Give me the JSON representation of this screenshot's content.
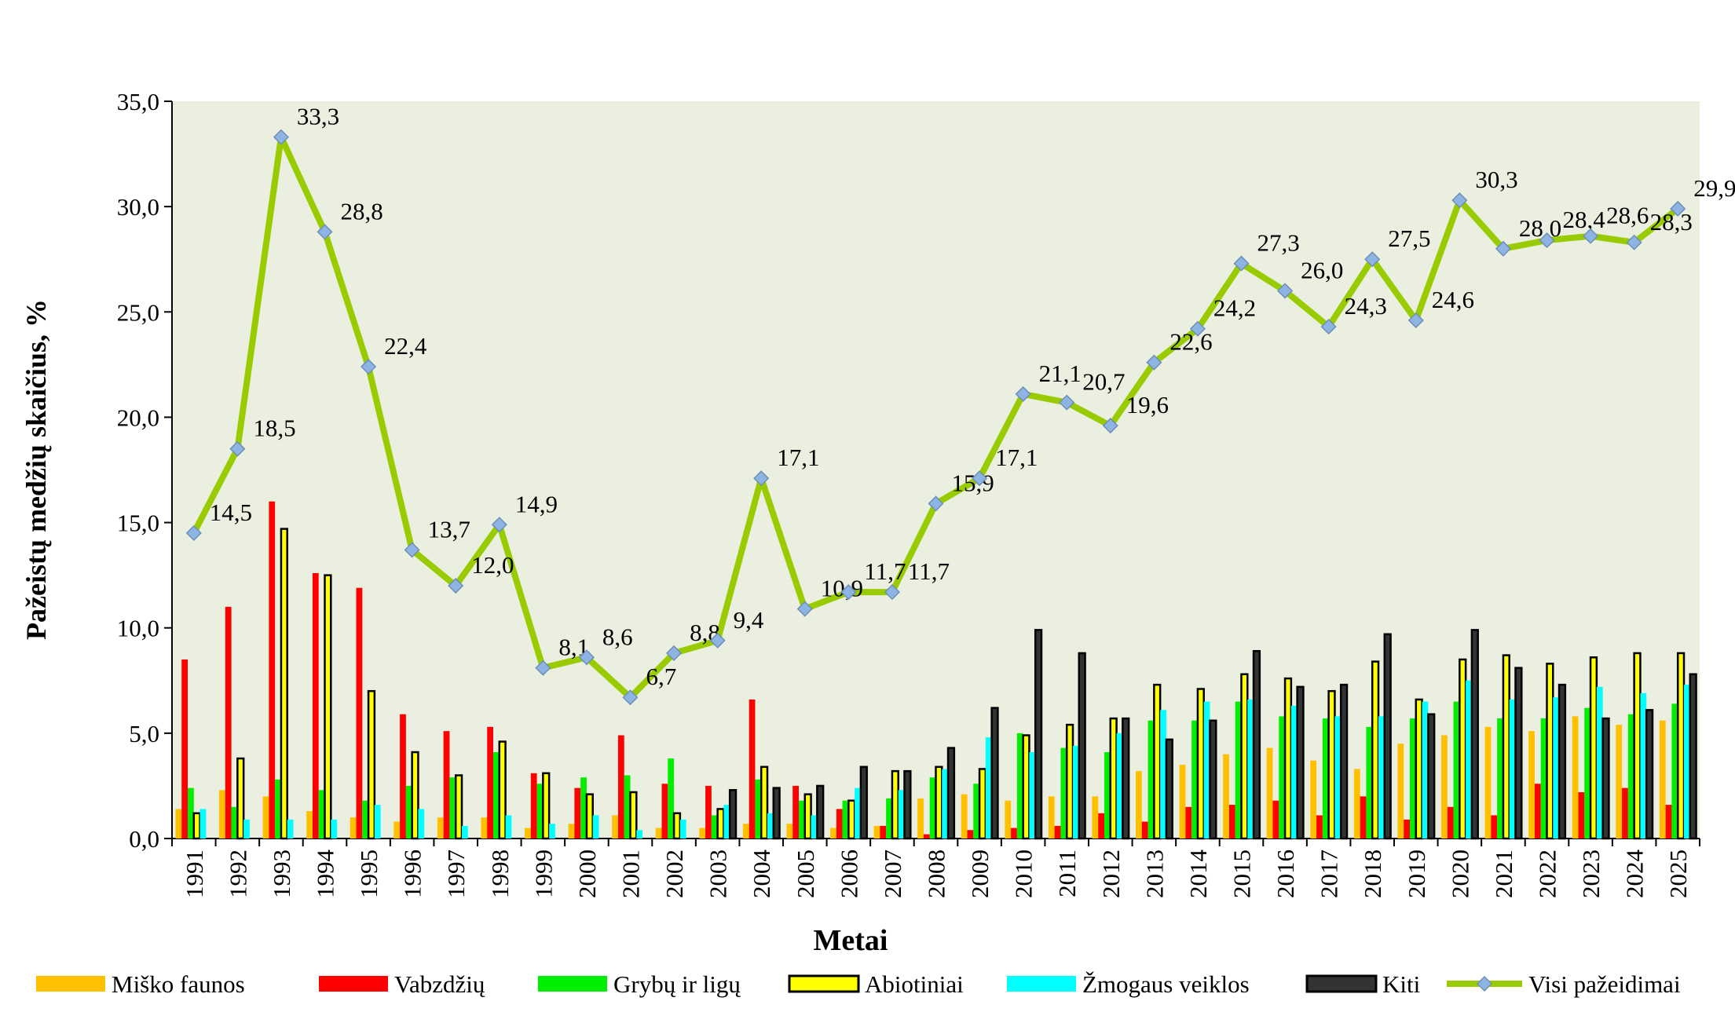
{
  "chart_data": {
    "type": "bar",
    "ylabel": "Pažeistų medžių skaičius, %",
    "xlabel": "Metai",
    "categories": [
      "1991",
      "1992",
      "1993",
      "1994",
      "1995",
      "1996",
      "1997",
      "1998",
      "1999",
      "2000",
      "2001",
      "2002",
      "2003",
      "2004",
      "2005",
      "2006",
      "2007",
      "2008",
      "2009",
      "2010",
      "2011",
      "2012",
      "2013",
      "2014",
      "2015",
      "2016",
      "2017",
      "2018",
      "2019",
      "2020",
      "2021",
      "2022",
      "2023",
      "2024",
      "2025"
    ],
    "ylim": [
      0,
      35
    ],
    "yticks": [
      {
        "value": 0,
        "label": "0,0"
      },
      {
        "value": 5,
        "label": "5,0"
      },
      {
        "value": 10,
        "label": "10,0"
      },
      {
        "value": 15,
        "label": "15,0"
      },
      {
        "value": 20,
        "label": "20,0"
      },
      {
        "value": 25,
        "label": "25,0"
      },
      {
        "value": 30,
        "label": "30,0"
      },
      {
        "value": 35,
        "label": "35,0"
      }
    ],
    "background": "#ebefdf",
    "series": [
      {
        "name": "Miško faunos",
        "color": "#ffc000",
        "values": [
          1.4,
          2.3,
          2.0,
          1.3,
          1.0,
          0.8,
          1.0,
          1.0,
          0.5,
          0.7,
          1.1,
          0.5,
          0.5,
          0.7,
          0.7,
          0.5,
          0.6,
          1.9,
          2.1,
          1.8,
          2.0,
          2.0,
          3.2,
          3.5,
          4.0,
          4.3,
          3.7,
          3.3,
          4.5,
          4.9,
          5.3,
          5.1,
          5.8,
          5.4,
          5.6
        ]
      },
      {
        "name": "Vabzdžių",
        "color": "#ff0000",
        "values": [
          8.5,
          11.0,
          16.0,
          12.6,
          11.9,
          5.9,
          5.1,
          5.3,
          3.1,
          2.4,
          4.9,
          2.6,
          2.5,
          6.6,
          2.5,
          1.4,
          0.6,
          0.2,
          0.4,
          0.5,
          0.6,
          1.2,
          0.8,
          1.5,
          1.6,
          1.8,
          1.1,
          2.0,
          0.9,
          1.5,
          1.1,
          2.6,
          2.2,
          2.4,
          1.6
        ]
      },
      {
        "name": "Grybų ir ligų",
        "color": "#00ee00",
        "values": [
          2.4,
          1.5,
          2.8,
          2.3,
          1.8,
          2.5,
          2.9,
          4.1,
          2.6,
          2.9,
          3.0,
          3.8,
          1.1,
          2.8,
          1.8,
          1.8,
          1.9,
          2.9,
          2.6,
          5.0,
          4.3,
          4.1,
          5.6,
          5.6,
          6.5,
          5.8,
          5.7,
          5.3,
          5.7,
          6.5,
          5.7,
          5.7,
          6.2,
          5.9,
          6.4
        ]
      },
      {
        "name": "Abiotiniai",
        "color": "#ffff00",
        "outline": "#000000",
        "values": [
          1.2,
          3.8,
          14.7,
          12.5,
          7.0,
          4.1,
          3.0,
          4.6,
          3.1,
          2.1,
          2.2,
          1.2,
          1.4,
          3.4,
          2.1,
          1.8,
          3.2,
          3.4,
          3.3,
          4.9,
          5.4,
          5.7,
          7.3,
          7.1,
          7.8,
          7.6,
          7.0,
          8.4,
          6.6,
          8.5,
          8.7,
          8.3,
          8.6,
          8.8,
          8.8
        ]
      },
      {
        "name": "Žmogaus veiklos",
        "color": "#00ffff",
        "values": [
          1.4,
          0.9,
          0.9,
          0.9,
          1.6,
          1.4,
          0.6,
          1.1,
          0.7,
          1.1,
          0.4,
          0.9,
          1.6,
          1.2,
          1.1,
          2.4,
          2.3,
          3.3,
          4.8,
          4.1,
          4.4,
          5.0,
          6.1,
          6.5,
          6.6,
          6.3,
          5.8,
          5.8,
          6.5,
          7.5,
          6.6,
          6.7,
          7.2,
          6.9,
          7.3
        ]
      },
      {
        "name": "Kiti",
        "color": "#333333",
        "outline": "#000000",
        "values": [
          0,
          0,
          0,
          0,
          0,
          0,
          0,
          0,
          0,
          0,
          0,
          0,
          2.3,
          2.4,
          2.5,
          3.4,
          3.2,
          4.3,
          6.2,
          9.9,
          8.8,
          5.7,
          4.7,
          5.6,
          8.9,
          7.2,
          7.3,
          9.7,
          5.9,
          9.9,
          8.1,
          7.3,
          5.7,
          6.1,
          7.8
        ]
      },
      {
        "name": "Visi pažeidimai",
        "type": "line",
        "color": "#99cc00",
        "marker_color": "#8db4e2",
        "values": [
          14.5,
          18.5,
          33.3,
          28.8,
          22.4,
          13.7,
          12.0,
          14.9,
          8.1,
          8.6,
          6.7,
          8.8,
          9.4,
          17.1,
          10.9,
          11.7,
          11.7,
          15.9,
          17.1,
          21.1,
          20.7,
          19.6,
          22.6,
          24.2,
          27.3,
          26.0,
          24.3,
          27.5,
          24.6,
          30.3,
          28.0,
          28.4,
          28.6,
          28.3,
          29.9
        ],
        "value_labels": [
          "14,5",
          "18,5",
          "33,3",
          "28,8",
          "22,4",
          "13,7",
          "12,0",
          "14,9",
          "8,1",
          "8,6",
          "6,7",
          "8,8",
          "9,4",
          "17,1",
          "10,9",
          "11,7",
          "11,7",
          "15,9",
          "17,1",
          "21,1",
          "20,7",
          "19,6",
          "22,6",
          "24,2",
          "27,3",
          "26,0",
          "24,3",
          "27,5",
          "24,6",
          "30,3",
          "28,0",
          "28,4",
          "28,6",
          "28,3",
          "29,9"
        ]
      }
    ]
  }
}
